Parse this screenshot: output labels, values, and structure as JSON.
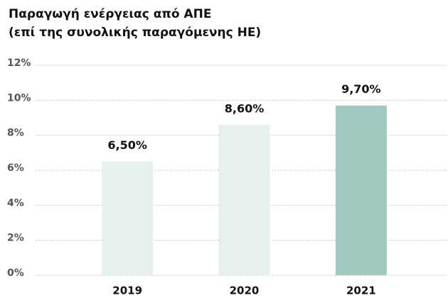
{
  "chart_data": {
    "type": "bar",
    "title": "Παραγωγή ενέργειας από ΑΠΕ",
    "subtitle": "(επί της συνολικής παραγόμενης ΗΕ)",
    "categories": [
      "2019",
      "2020",
      "2021"
    ],
    "values": [
      6.5,
      8.6,
      9.7
    ],
    "value_labels": [
      "6,50%",
      "8,60%",
      "9,70%"
    ],
    "colors": [
      "#e6f0ee",
      "#e6f0ee",
      "#9ec8c0"
    ],
    "ylim": [
      0,
      12
    ],
    "yticks": [
      {
        "value": 0,
        "label": "0%"
      },
      {
        "value": 2,
        "label": "2%"
      },
      {
        "value": 4,
        "label": "4%"
      },
      {
        "value": 6,
        "label": "6%"
      },
      {
        "value": 8,
        "label": "8%"
      },
      {
        "value": 10,
        "label": "10%"
      },
      {
        "value": 12,
        "label": "12%"
      }
    ],
    "grid": true
  }
}
